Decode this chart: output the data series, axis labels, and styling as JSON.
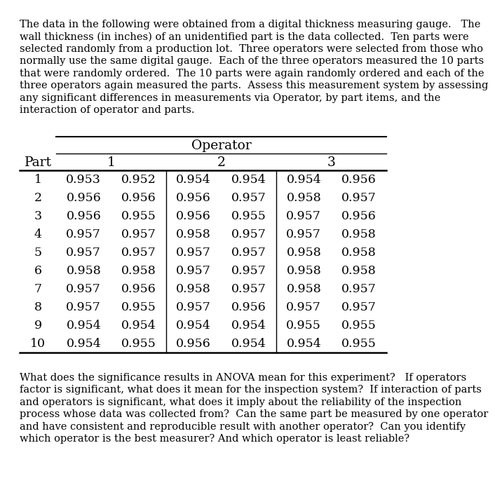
{
  "intro_lines": [
    "The data in the following were obtained from a digital thickness measuring gauge.   The",
    "wall thickness (in inches) of an unidentified part is the data collected.  Ten parts were",
    "selected randomly from a production lot.  Three operators were selected from those who",
    "normally use the same digital gauge.  Each of the three operators measured the 10 parts",
    "that were randomly ordered.  The 10 parts were again randomly ordered and each of the",
    "three operators again measured the parts.  Assess this measurement system by assessing",
    "any significant differences in measurements via Operator, by part items, and the",
    "interaction of operator and parts."
  ],
  "footer_lines": [
    "What does the significance results in ANOVA mean for this experiment?   If operators",
    "factor is significant, what does it mean for the inspection system?  If interaction of parts",
    "and operators is significant, what does it imply about the reliability of the inspection",
    "process whose data was collected from?  Can the same part be measured by one operator",
    "and have consistent and reproducible result with another operator?  Can you identify",
    "which operator is the best measurer? And which operator is least reliable?"
  ],
  "operator_label": "Operator",
  "part_label": "Part",
  "operator_sublabels": [
    "1",
    "2",
    "3"
  ],
  "parts": [
    "1",
    "2",
    "3",
    "4",
    "5",
    "6",
    "7",
    "8",
    "9",
    "10"
  ],
  "data": [
    [
      "0.953",
      "0.952",
      "0.954",
      "0.954",
      "0.954",
      "0.956"
    ],
    [
      "0.956",
      "0.956",
      "0.956",
      "0.957",
      "0.958",
      "0.957"
    ],
    [
      "0.956",
      "0.955",
      "0.956",
      "0.955",
      "0.957",
      "0.956"
    ],
    [
      "0.957",
      "0.957",
      "0.958",
      "0.957",
      "0.957",
      "0.958"
    ],
    [
      "0.957",
      "0.957",
      "0.957",
      "0.957",
      "0.958",
      "0.958"
    ],
    [
      "0.958",
      "0.958",
      "0.957",
      "0.957",
      "0.958",
      "0.958"
    ],
    [
      "0.957",
      "0.956",
      "0.958",
      "0.957",
      "0.958",
      "0.957"
    ],
    [
      "0.957",
      "0.955",
      "0.957",
      "0.956",
      "0.957",
      "0.957"
    ],
    [
      "0.954",
      "0.954",
      "0.954",
      "0.954",
      "0.955",
      "0.955"
    ],
    [
      "0.954",
      "0.955",
      "0.956",
      "0.954",
      "0.954",
      "0.955"
    ]
  ],
  "bg_color": "#ffffff",
  "text_color": "#000000",
  "body_fontsize": 10.5,
  "table_fontsize": 12.5,
  "header_fontsize": 13.5
}
